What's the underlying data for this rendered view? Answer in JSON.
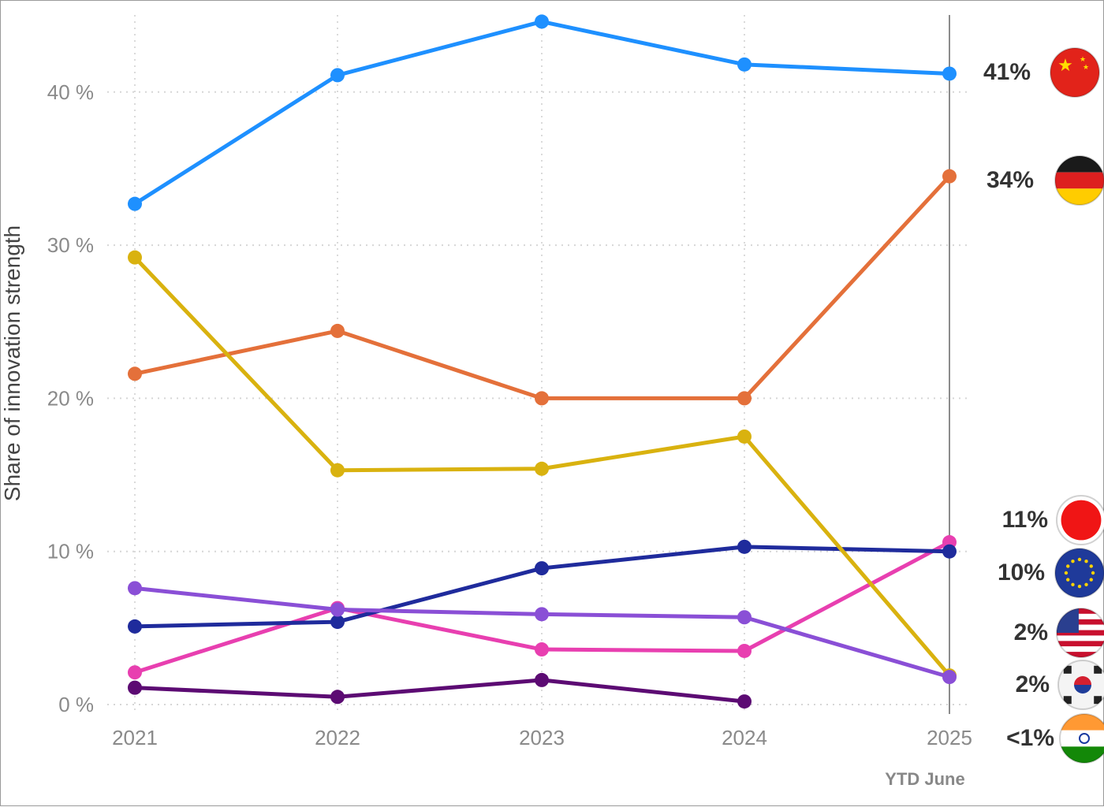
{
  "chart_data": {
    "type": "line",
    "xlabel": "",
    "ylabel": "Share of innovation strength",
    "x": [
      "2021",
      "2022",
      "2023",
      "2024",
      "2025"
    ],
    "x_note": "YTD June",
    "y_ticks": [
      "0 %",
      "10 %",
      "20 %",
      "30 %",
      "40 %"
    ],
    "ylim": [
      0,
      45
    ],
    "grid": "dotted",
    "series": [
      {
        "flag": "china-flag-icon",
        "color": "#1e90ff",
        "values": [
          32.7,
          41.1,
          44.6,
          41.8,
          41.2
        ],
        "end_label": "41%"
      },
      {
        "flag": "germany-flag-icon",
        "color": "#e4703a",
        "values": [
          21.6,
          24.4,
          20.0,
          20.0,
          34.5
        ],
        "end_label": "34%"
      },
      {
        "flag": "japan-flag-icon",
        "color": "#e83fb0",
        "values": [
          2.1,
          6.3,
          3.6,
          3.5,
          10.6
        ],
        "end_label": "11%"
      },
      {
        "flag": "eu-flag-icon",
        "color": "#1f2b9c",
        "values": [
          5.1,
          5.4,
          8.9,
          10.3,
          10.0
        ],
        "end_label": "10%"
      },
      {
        "flag": "usa-flag-icon",
        "color": "#d9b20f",
        "values": [
          29.2,
          15.3,
          15.4,
          17.5,
          1.9
        ],
        "end_label": "2%"
      },
      {
        "flag": "korea-flag-icon",
        "color": "#8a4fd6",
        "values": [
          7.6,
          6.2,
          5.9,
          5.7,
          1.8
        ],
        "end_label": "2%"
      },
      {
        "flag": "india-flag-icon",
        "color": "#5c0b73",
        "values": [
          1.1,
          0.5,
          1.6,
          0.2,
          null
        ],
        "end_label": "<1%"
      }
    ]
  }
}
